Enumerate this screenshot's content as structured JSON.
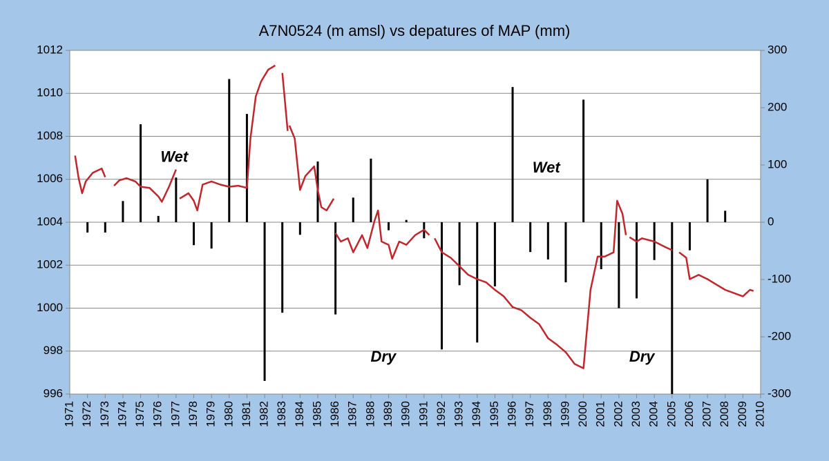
{
  "chart_data": {
    "type": "combo",
    "title": "A7N0524 (m amsl) vs depatures of MAP (mm)",
    "xlim": [
      1971,
      2010
    ],
    "xticks": [
      1971,
      1972,
      1973,
      1974,
      1975,
      1976,
      1977,
      1978,
      1979,
      1980,
      1981,
      1982,
      1983,
      1984,
      1985,
      1986,
      1987,
      1988,
      1989,
      1990,
      1991,
      1992,
      1993,
      1994,
      1995,
      1996,
      1997,
      1998,
      1999,
      2000,
      2001,
      2002,
      2003,
      2004,
      2005,
      2006,
      2007,
      2008,
      2009,
      2010
    ],
    "ylim": [
      996,
      1012
    ],
    "yticks": [
      996,
      998,
      1000,
      1002,
      1004,
      1006,
      1008,
      1010,
      1012
    ],
    "y2lim": [
      -300,
      300
    ],
    "y2ticks": [
      -300,
      -200,
      -100,
      0,
      100,
      200,
      300
    ],
    "grid": true,
    "series": [
      {
        "type": "line",
        "color": "#c0272d",
        "x": [
          1971.3,
          1971.5,
          1971.7,
          1971.9,
          1972.3,
          1972.8,
          1973.0,
          1973.2,
          1973.5,
          1973.8,
          1974.2,
          1974.7,
          1975.0,
          1975.5,
          1976.0,
          1976.2,
          1976.6,
          1977.0,
          1977.1,
          1977.2,
          1977.7,
          1978.0,
          1978.2,
          1978.5,
          1979.0,
          1979.5,
          1980.0,
          1980.5,
          1981.0,
          1981.2,
          1981.5,
          1981.8,
          1982.2,
          1982.6,
          1982.8,
          1983.0,
          1983.3,
          1983.35,
          1983.4,
          1983.7,
          1984.0,
          1984.3,
          1984.8,
          1985.0,
          1985.2,
          1985.5,
          1985.9,
          1985.95,
          1986.0,
          1986.3,
          1986.7,
          1987.0,
          1987.5,
          1987.8,
          1988.2,
          1988.4,
          1988.6,
          1989.0,
          1989.2,
          1989.6,
          1990.0,
          1990.5,
          1991.0,
          1991.3,
          1991.45,
          1991.6,
          1992.0,
          1992.5,
          1993.0,
          1993.5,
          1994.0,
          1994.5,
          1995.0,
          1995.5,
          1996.0,
          1996.5,
          1997.0,
          1997.5,
          1998.0,
          1998.5,
          1999.0,
          1999.5,
          2000.0,
          2000.4,
          2000.8,
          2001.2,
          2001.7,
          2001.9,
          2002.2,
          2002.4,
          2002.5,
          2002.6,
          2003.0,
          2003.3,
          2004.0,
          2004.6,
          2005.0,
          2005.2,
          2005.4,
          2005.8,
          2006.0,
          2006.5,
          2007.0,
          2007.5,
          2008.0,
          2008.5,
          2009.0,
          2009.2,
          2009.4,
          2009.6
        ],
        "values": [
          1007.1,
          1006.05,
          1005.35,
          1005.9,
          1006.3,
          1006.5,
          1006.1,
          null,
          1005.7,
          1005.95,
          1006.05,
          1005.9,
          1005.65,
          1005.6,
          1005.2,
          1004.95,
          1005.65,
          1006.45,
          null,
          1005.1,
          1005.35,
          1005.0,
          1004.55,
          1005.75,
          1005.9,
          1005.75,
          1005.65,
          1005.7,
          1005.6,
          1007.9,
          1009.85,
          1010.55,
          1011.1,
          1011.3,
          null,
          1010.95,
          1008.25,
          null,
          1008.5,
          1007.9,
          1005.5,
          1006.15,
          1006.6,
          1005.5,
          1004.7,
          1004.55,
          1005.1,
          null,
          1003.5,
          1003.1,
          1003.25,
          1002.6,
          1003.4,
          1002.8,
          1004.05,
          1004.55,
          1003.1,
          1002.95,
          1002.3,
          1003.1,
          1002.95,
          1003.4,
          1003.65,
          1003.4,
          null,
          1003.25,
          1002.6,
          1002.35,
          1001.95,
          1001.55,
          1001.35,
          1001.2,
          1000.85,
          1000.55,
          1000.05,
          999.9,
          999.55,
          999.25,
          998.6,
          998.3,
          997.95,
          997.4,
          997.2,
          1000.85,
          1002.4,
          1002.4,
          1002.6,
          1005.0,
          1004.4,
          1003.4,
          null,
          1003.3,
          1003.1,
          1003.25,
          1003.1,
          1002.85,
          1002.7,
          null,
          1002.6,
          1002.35,
          1001.35,
          1001.55,
          1001.35,
          1001.1,
          1000.85,
          1000.7,
          1000.55,
          1000.7,
          1000.85,
          1000.8
        ]
      },
      {
        "type": "bar",
        "axis": "y2",
        "color": "#000000",
        "x": [
          1972,
          1973,
          1974,
          1975,
          1976,
          1977,
          1978,
          1979,
          1980,
          1981,
          1982,
          1983,
          1984,
          1985,
          1986,
          1987,
          1988,
          1989,
          1990,
          1991,
          1992,
          1993,
          1994,
          1995,
          1996,
          1997,
          1998,
          1999,
          2000,
          2001,
          2002,
          2003,
          2004,
          2005,
          2006,
          2007,
          2008
        ],
        "values": [
          -18,
          -18,
          37,
          171,
          11,
          78,
          -40,
          -46,
          250,
          189,
          -277,
          -158,
          -22,
          106,
          -161,
          43,
          111,
          -14,
          4,
          -28,
          -222,
          -110,
          -210,
          -112,
          236,
          -52,
          -65,
          -105,
          214,
          -82,
          -150,
          -133,
          -66,
          -300,
          -49,
          75,
          20
        ]
      }
    ],
    "annotations": [
      {
        "text": "Wet",
        "x": 1976.9,
        "y": 1007.0,
        "color": "#1f6fbf"
      },
      {
        "text": "Wet",
        "x": 1997.9,
        "y": 1006.5,
        "color": "#1f6fbf"
      },
      {
        "text": "Dry",
        "x": 1988.7,
        "y": 997.7,
        "color": "#e0262c"
      },
      {
        "text": "Dry",
        "x": 2003.3,
        "y": 997.7,
        "color": "#e0262c"
      }
    ]
  }
}
